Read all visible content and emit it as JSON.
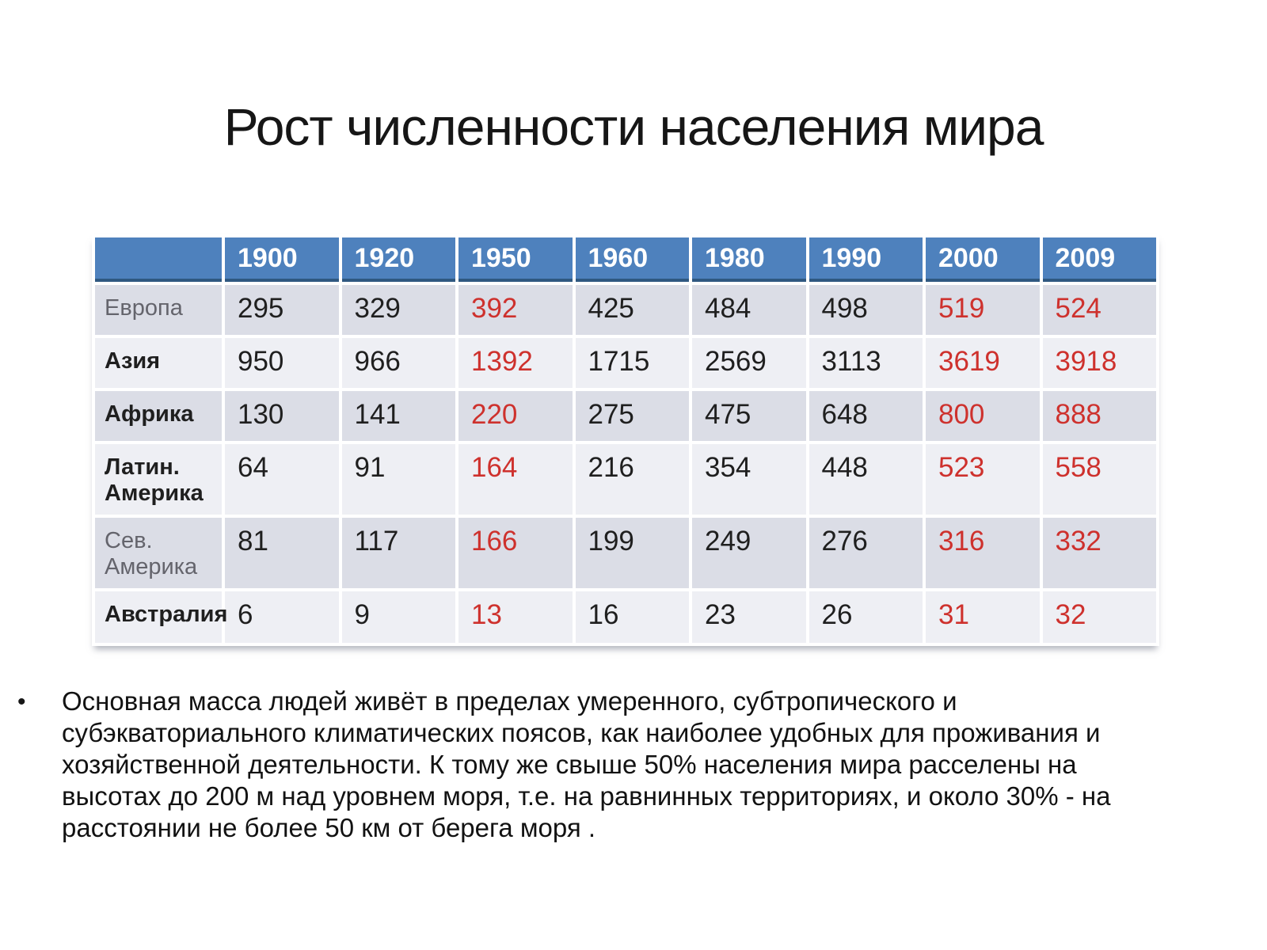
{
  "slide": {
    "title": "Рост численности населения мира",
    "bullet_marker": "•",
    "paragraph": "Основная масса людей живёт в пределах умеренного, субтропического и\nсубэкваториального климатических поясов, как наиболее удобных для проживания и\nхозяйственной деятельности. К тому же свыше 50% населения мира расселены на\nвысотах до 200 м над уровнем моря, т.е. на равнинных территориях, и около 30% - на\nрасстоянии не более 50 км от берега моря ."
  },
  "table": {
    "header": [
      "",
      "1900",
      "1920",
      "1950",
      "1960",
      "1980",
      "1990",
      "2000",
      "2009"
    ],
    "red_value_indexes": [
      2,
      6,
      7
    ],
    "rows": [
      {
        "label": "Европа",
        "muted": true,
        "values": [
          295,
          329,
          392,
          425,
          484,
          498,
          519,
          524
        ]
      },
      {
        "label": "Азия",
        "muted": false,
        "values": [
          950,
          966,
          1392,
          1715,
          2569,
          3113,
          3619,
          3918
        ]
      },
      {
        "label": "Африка",
        "muted": false,
        "values": [
          130,
          141,
          220,
          275,
          475,
          648,
          800,
          888
        ]
      },
      {
        "label": "Латин.\nАмерика",
        "muted": false,
        "values": [
          64,
          91,
          164,
          216,
          354,
          448,
          523,
          558
        ]
      },
      {
        "label": "Сев.\nАмерика",
        "muted": true,
        "values": [
          81,
          117,
          166,
          199,
          249,
          276,
          316,
          332
        ]
      },
      {
        "label": "Австралия",
        "muted": false,
        "values": [
          6,
          9,
          13,
          16,
          23,
          26,
          31,
          32
        ]
      }
    ],
    "colors": {
      "header_bg": "#4E81BD",
      "header_text": "#FFFFFF",
      "header_border": "#2F5880",
      "row_dark": "#DBDDE6",
      "row_light": "#EEEFF4",
      "value_red": "#CE312D",
      "value_black": "#1F1F1F",
      "label_muted": "#64646C"
    }
  }
}
